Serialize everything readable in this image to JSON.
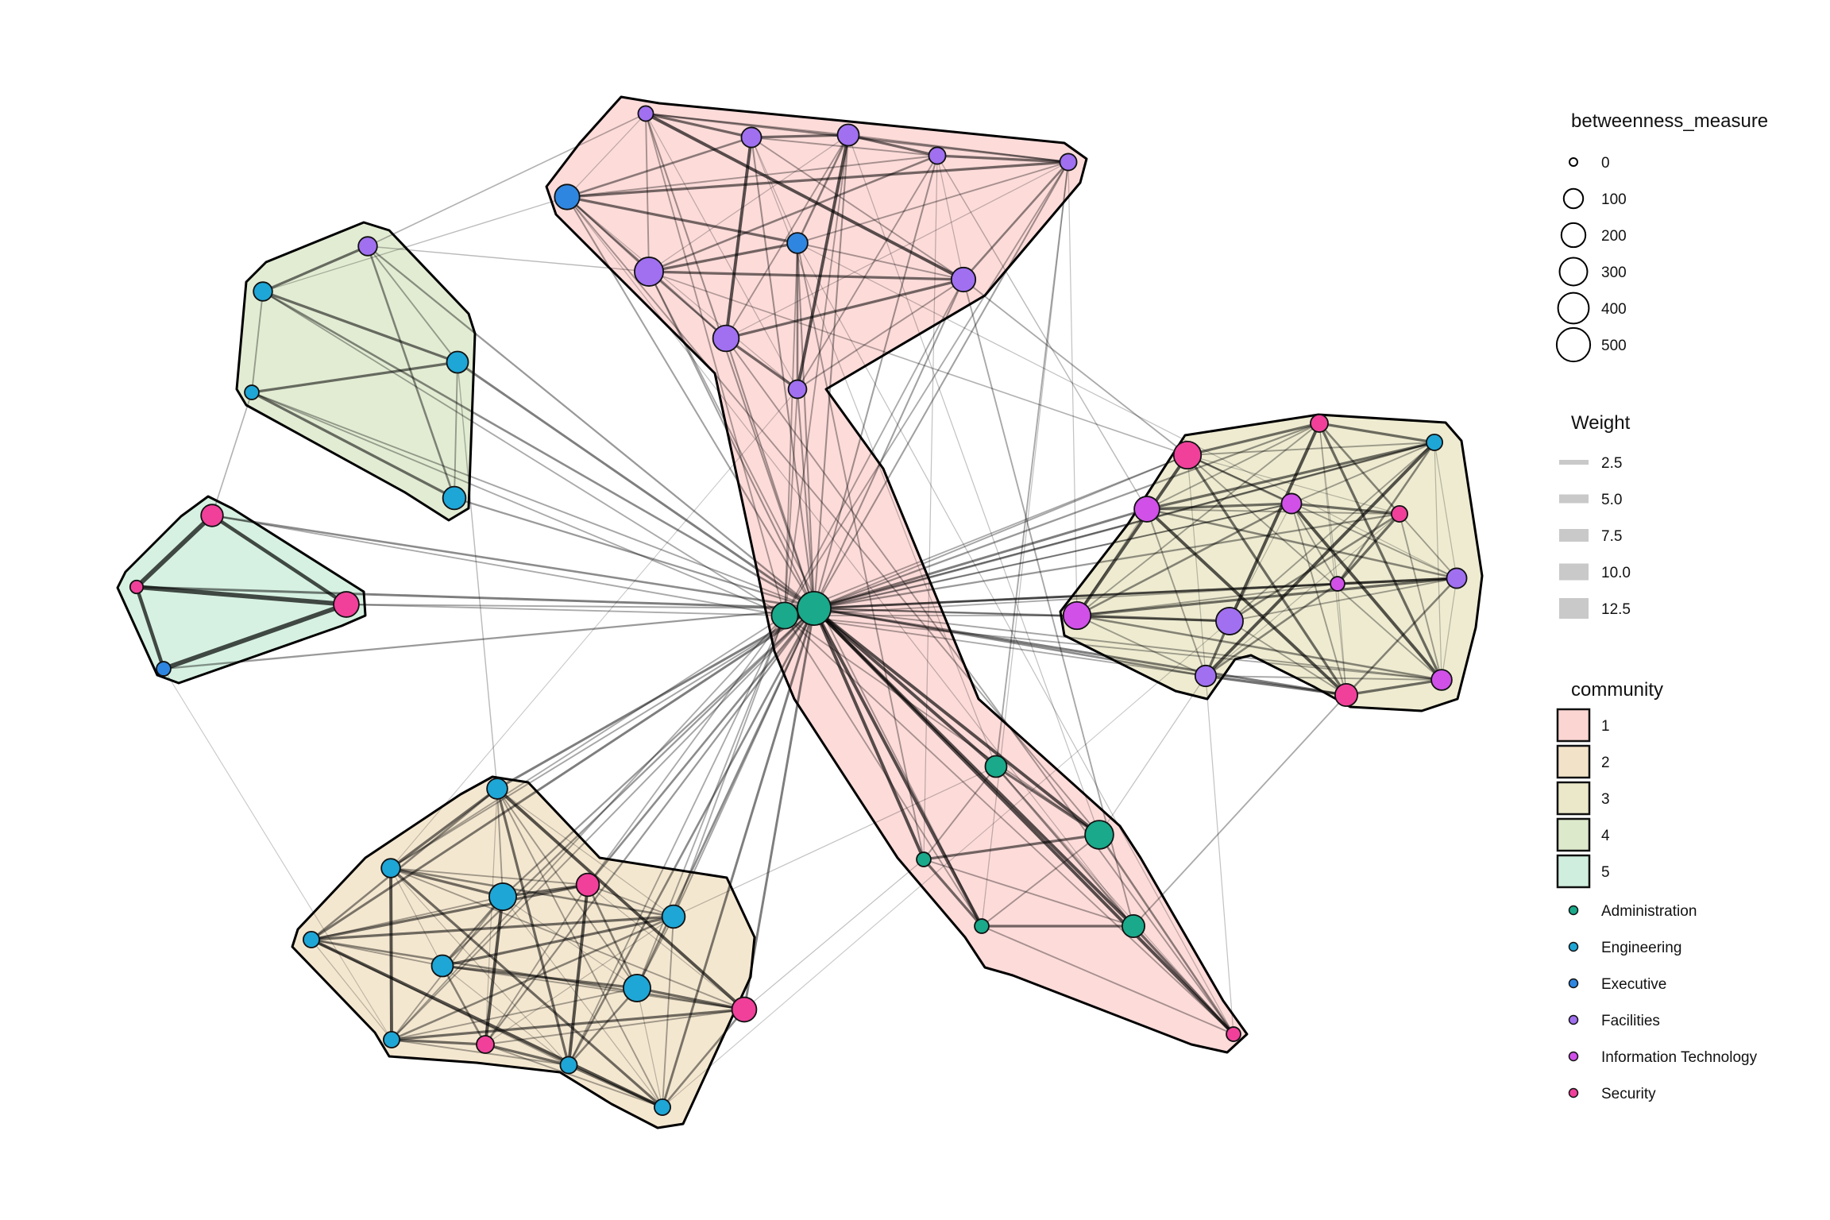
{
  "legend": {
    "betweenness": {
      "title": "betweenness_measure",
      "items": [
        {
          "label": "0",
          "value": 0
        },
        {
          "label": "100",
          "value": 100
        },
        {
          "label": "200",
          "value": 200
        },
        {
          "label": "300",
          "value": 300
        },
        {
          "label": "400",
          "value": 400
        },
        {
          "label": "500",
          "value": 500
        }
      ]
    },
    "weight": {
      "title": "Weight",
      "items": [
        {
          "label": "2.5",
          "value": 2.5
        },
        {
          "label": "5.0",
          "value": 5.0
        },
        {
          "label": "7.5",
          "value": 7.5
        },
        {
          "label": "10.0",
          "value": 10.0
        },
        {
          "label": "12.5",
          "value": 12.5
        }
      ]
    },
    "community": {
      "title": "community",
      "items": [
        {
          "label": "1",
          "color": "#fbd5d2"
        },
        {
          "label": "2",
          "color": "#f2e3c8"
        },
        {
          "label": "3",
          "color": "#ebe8c9"
        },
        {
          "label": "4",
          "color": "#dde9cb"
        },
        {
          "label": "5",
          "color": "#cfeedd"
        }
      ]
    },
    "departments": [
      {
        "label": "Administration",
        "color": "#1aa98a"
      },
      {
        "label": "Engineering",
        "color": "#1ea6d6"
      },
      {
        "label": "Executive",
        "color": "#2f86e0"
      },
      {
        "label": "Facilities",
        "color": "#a070f0"
      },
      {
        "label": "Information Technology",
        "color": "#d050e8"
      },
      {
        "label": "Security",
        "color": "#f0409a"
      }
    ]
  }
}
